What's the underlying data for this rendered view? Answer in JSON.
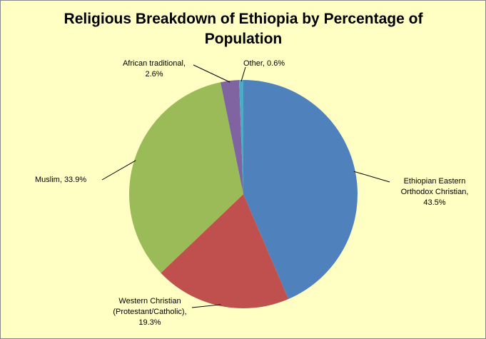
{
  "chart_data": {
    "type": "pie",
    "title": "Religious Breakdown of Ethiopia by Percentage of Population",
    "values": [
      43.5,
      19.3,
      33.9,
      2.6,
      0.6
    ],
    "value_labels": [
      "Ethiopian  Eastern Orthodox Christian, 43.5%",
      "Western Christian (Protestant/Catholic), 19.3%",
      "Muslim, 33.9%",
      "African traditional, 2.6%",
      "Other, 0.6%"
    ],
    "colors": [
      "#4f81bd",
      "#c0504d",
      "#9bbb59",
      "#8064a2",
      "#4bacc6"
    ]
  }
}
